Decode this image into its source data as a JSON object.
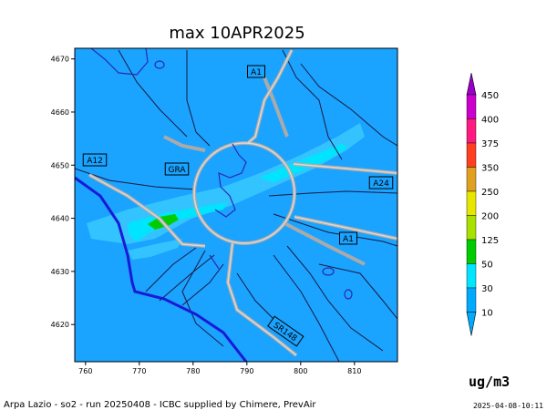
{
  "title": "max 10APR2025",
  "units": "ug/m3",
  "footer": "Arpa Lazio - so2 - run 20250408 - ICBC supplied by Chimere, PrevAir",
  "timestamp": "2025-04-08-10:11",
  "map": {
    "x_ticks": [
      "760",
      "770",
      "780",
      "790",
      "800",
      "810"
    ],
    "y_ticks": [
      "4670",
      "4660",
      "4650",
      "4640",
      "4630",
      "4620"
    ],
    "x_range": [
      758,
      818
    ],
    "y_range": [
      4613,
      4672
    ],
    "road_labels": [
      "A1",
      "A12",
      "GRA",
      "A24",
      "A1",
      "SR148"
    ],
    "colors": {
      "background_field": "#1aa3ff",
      "field_light": "#33c4ff",
      "field_cyan": "#00e5ff",
      "hotspot": "#00cc00",
      "coastline": "#1a1ad6",
      "borders": "#1a1a40",
      "roads": "#c8c8c8"
    }
  },
  "legend": {
    "levels": [
      "10",
      "30",
      "50",
      "125",
      "200",
      "250",
      "350",
      "375",
      "400",
      "450"
    ],
    "colors": [
      "#00aaff",
      "#00e5ff",
      "#00cc00",
      "#a8e000",
      "#e6e600",
      "#e0a020",
      "#ff4020",
      "#ff1a80",
      "#cc00cc",
      "#9900cc"
    ]
  }
}
